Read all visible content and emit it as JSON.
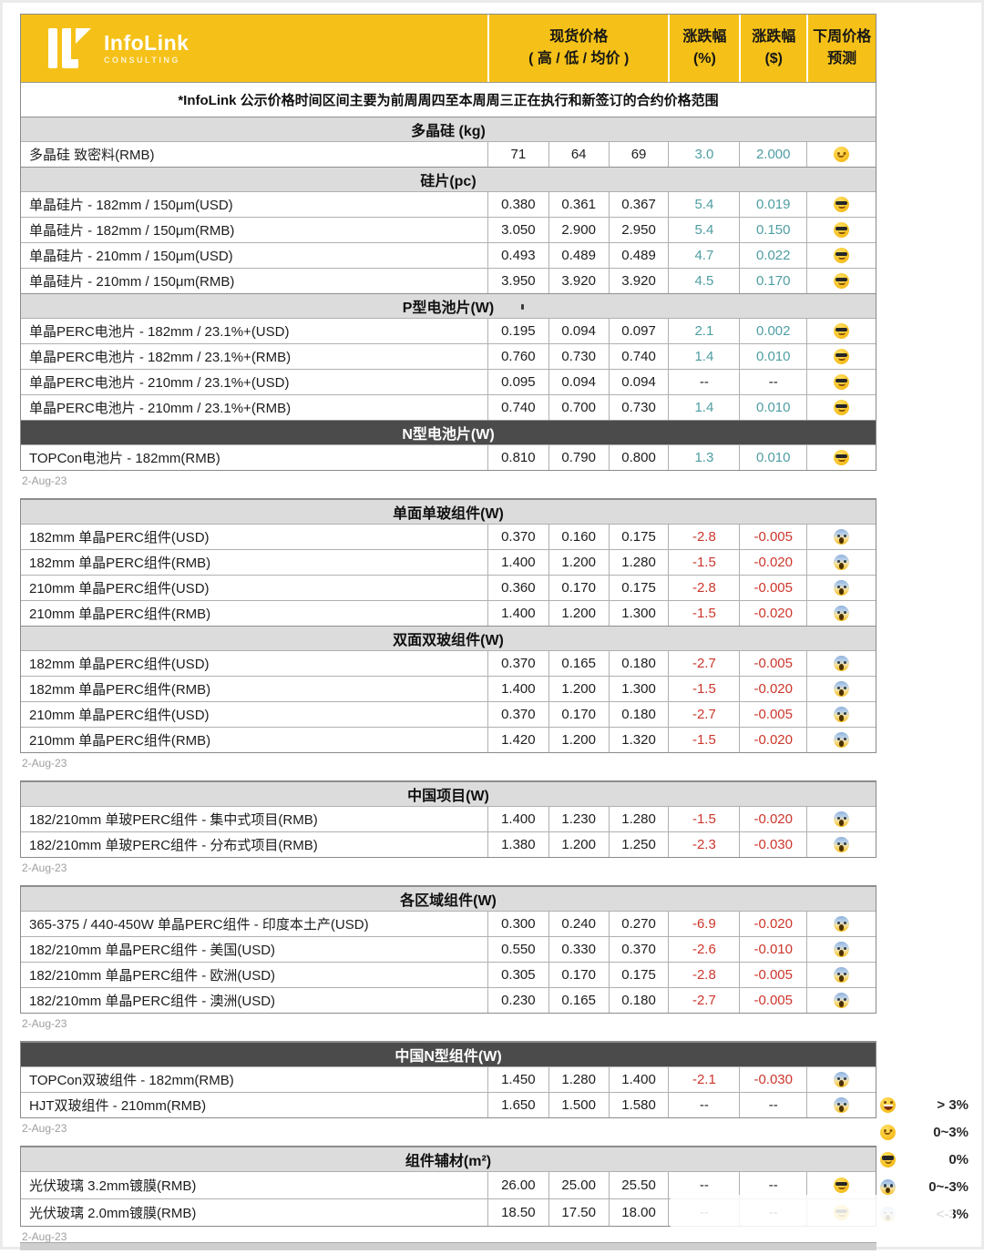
{
  "meta": {
    "date_stamp": "2-Aug-23"
  },
  "colors": {
    "accent_yellow": "#F5C118",
    "up_teal": "#4F9EA2",
    "down_red": "#CC362C",
    "dark_header_bg": "#4B4B4B",
    "section_header_bg": "#DCDCDC"
  },
  "header": {
    "brand": "InfoLink",
    "brand_sub": "CONSULTING",
    "col_spot_1": "现货价格",
    "col_spot_2": "( 高 / 低 / 均价 )",
    "col_pct_1": "涨跌幅",
    "col_pct_2": "(%)",
    "col_usd_1": "涨跌幅",
    "col_usd_2": "($)",
    "col_fc_1": "下周价格",
    "col_fc_2": "预测"
  },
  "note": "*InfoLink 公示价格时间区间主要为前周周四至本周周三正在执行和新签订的合约价格范围",
  "blocks": [
    {
      "date": "2-Aug-23",
      "sections": [
        {
          "title": "多晶硅 (kg)",
          "style": "light",
          "rows": [
            {
              "label": "多晶硅 致密料(RMB)",
              "high": "71",
              "low": "64",
              "avg": "69",
              "pct": "3.0",
              "chg": "2.000",
              "dir": "up",
              "emoji": "smile"
            }
          ]
        },
        {
          "title": "硅片(pc)",
          "style": "light",
          "rows": [
            {
              "label": "单晶硅片 - 182mm / 150μm(USD)",
              "high": "0.380",
              "low": "0.361",
              "avg": "0.367",
              "pct": "5.4",
              "chg": "0.019",
              "dir": "up",
              "emoji": "cool"
            },
            {
              "label": "单晶硅片 - 182mm / 150μm(RMB)",
              "high": "3.050",
              "low": "2.900",
              "avg": "2.950",
              "pct": "5.4",
              "chg": "0.150",
              "dir": "up",
              "emoji": "cool"
            },
            {
              "label": "单晶硅片 - 210mm / 150μm(USD)",
              "high": "0.493",
              "low": "0.489",
              "avg": "0.489",
              "pct": "4.7",
              "chg": "0.022",
              "dir": "up",
              "emoji": "cool"
            },
            {
              "label": "单晶硅片 - 210mm / 150μm(RMB)",
              "high": "3.950",
              "low": "3.920",
              "avg": "3.920",
              "pct": "4.5",
              "chg": "0.170",
              "dir": "up",
              "emoji": "cool"
            }
          ]
        },
        {
          "title": "P型电池片(W)",
          "style": "light",
          "rows": [
            {
              "label": "单晶PERC电池片 - 182mm / 23.1%+(USD)",
              "high": "0.195",
              "low": "0.094",
              "avg": "0.097",
              "pct": "2.1",
              "chg": "0.002",
              "dir": "up",
              "emoji": "cool"
            },
            {
              "label": "单晶PERC电池片 - 182mm / 23.1%+(RMB)",
              "high": "0.760",
              "low": "0.730",
              "avg": "0.740",
              "pct": "1.4",
              "chg": "0.010",
              "dir": "up",
              "emoji": "cool"
            },
            {
              "label": "单晶PERC电池片 - 210mm / 23.1%+(USD)",
              "high": "0.095",
              "low": "0.094",
              "avg": "0.094",
              "pct": "--",
              "chg": "--",
              "dir": "flat",
              "emoji": "cool"
            },
            {
              "label": "单晶PERC电池片 - 210mm / 23.1%+(RMB)",
              "high": "0.740",
              "low": "0.700",
              "avg": "0.730",
              "pct": "1.4",
              "chg": "0.010",
              "dir": "up",
              "emoji": "cool"
            }
          ]
        },
        {
          "title": "N型电池片(W)",
          "style": "dark",
          "rows": [
            {
              "label": "TOPCon电池片 - 182mm(RMB)",
              "high": "0.810",
              "low": "0.790",
              "avg": "0.800",
              "pct": "1.3",
              "chg": "0.010",
              "dir": "up",
              "emoji": "cool"
            }
          ]
        }
      ]
    },
    {
      "date": "2-Aug-23",
      "sections": [
        {
          "title": "单面单玻组件(W)",
          "style": "light",
          "rows": [
            {
              "label": "182mm 单晶PERC组件(USD)",
              "high": "0.370",
              "low": "0.160",
              "avg": "0.175",
              "pct": "-2.8",
              "chg": "-0.005",
              "dir": "down",
              "emoji": "scream"
            },
            {
              "label": "182mm 单晶PERC组件(RMB)",
              "high": "1.400",
              "low": "1.200",
              "avg": "1.280",
              "pct": "-1.5",
              "chg": "-0.020",
              "dir": "down",
              "emoji": "scream"
            },
            {
              "label": "210mm 单晶PERC组件(USD)",
              "high": "0.360",
              "low": "0.170",
              "avg": "0.175",
              "pct": "-2.8",
              "chg": "-0.005",
              "dir": "down",
              "emoji": "scream"
            },
            {
              "label": "210mm 单晶PERC组件(RMB)",
              "high": "1.400",
              "low": "1.200",
              "avg": "1.300",
              "pct": "-1.5",
              "chg": "-0.020",
              "dir": "down",
              "emoji": "scream"
            }
          ]
        },
        {
          "title": "双面双玻组件(W)",
          "style": "light",
          "rows": [
            {
              "label": "182mm 单晶PERC组件(USD)",
              "high": "0.370",
              "low": "0.165",
              "avg": "0.180",
              "pct": "-2.7",
              "chg": "-0.005",
              "dir": "down",
              "emoji": "scream"
            },
            {
              "label": "182mm 单晶PERC组件(RMB)",
              "high": "1.400",
              "low": "1.200",
              "avg": "1.300",
              "pct": "-1.5",
              "chg": "-0.020",
              "dir": "down",
              "emoji": "scream"
            },
            {
              "label": "210mm 单晶PERC组件(USD)",
              "high": "0.370",
              "low": "0.170",
              "avg": "0.180",
              "pct": "-2.7",
              "chg": "-0.005",
              "dir": "down",
              "emoji": "scream"
            },
            {
              "label": "210mm 单晶PERC组件(RMB)",
              "high": "1.420",
              "low": "1.200",
              "avg": "1.320",
              "pct": "-1.5",
              "chg": "-0.020",
              "dir": "down",
              "emoji": "scream"
            }
          ]
        }
      ]
    },
    {
      "date": "2-Aug-23",
      "sections": [
        {
          "title": "中国项目(W)",
          "style": "light",
          "rows": [
            {
              "label": "182/210mm 单玻PERC组件 - 集中式项目(RMB)",
              "high": "1.400",
              "low": "1.230",
              "avg": "1.280",
              "pct": "-1.5",
              "chg": "-0.020",
              "dir": "down",
              "emoji": "scream"
            },
            {
              "label": "182/210mm 单玻PERC组件 - 分布式项目(RMB)",
              "high": "1.380",
              "low": "1.200",
              "avg": "1.250",
              "pct": "-2.3",
              "chg": "-0.030",
              "dir": "down",
              "emoji": "scream"
            }
          ]
        }
      ]
    },
    {
      "date": "2-Aug-23",
      "sections": [
        {
          "title": "各区域组件(W)",
          "style": "light",
          "rows": [
            {
              "label": "365-375 / 440-450W 单晶PERC组件 - 印度本土产(USD)",
              "high": "0.300",
              "low": "0.240",
              "avg": "0.270",
              "pct": "-6.9",
              "chg": "-0.020",
              "dir": "down",
              "emoji": "scream"
            },
            {
              "label": "182/210mm 单晶PERC组件 - 美国(USD)",
              "high": "0.550",
              "low": "0.330",
              "avg": "0.370",
              "pct": "-2.6",
              "chg": "-0.010",
              "dir": "down",
              "emoji": "scream"
            },
            {
              "label": "182/210mm 单晶PERC组件 - 欧洲(USD)",
              "high": "0.305",
              "low": "0.170",
              "avg": "0.175",
              "pct": "-2.8",
              "chg": "-0.005",
              "dir": "down",
              "emoji": "scream"
            },
            {
              "label": "182/210mm 单晶PERC组件 - 澳洲(USD)",
              "high": "0.230",
              "low": "0.165",
              "avg": "0.180",
              "pct": "-2.7",
              "chg": "-0.005",
              "dir": "down",
              "emoji": "scream"
            }
          ]
        }
      ]
    },
    {
      "date": "2-Aug-23",
      "sections": [
        {
          "title": "中国N型组件(W)",
          "style": "dark",
          "rows": [
            {
              "label": "TOPCon双玻组件 - 182mm(RMB)",
              "high": "1.450",
              "low": "1.280",
              "avg": "1.400",
              "pct": "-2.1",
              "chg": "-0.030",
              "dir": "down",
              "emoji": "scream"
            },
            {
              "label": "HJT双玻组件 - 210mm(RMB)",
              "high": "1.650",
              "low": "1.500",
              "avg": "1.580",
              "pct": "--",
              "chg": "--",
              "dir": "flat",
              "emoji": "scream"
            }
          ]
        }
      ]
    },
    {
      "date": "2-Aug-23",
      "sections": [
        {
          "title": "组件辅材(m²)",
          "style": "light",
          "rows": [
            {
              "label": "光伏玻璃 3.2mm镀膜(RMB)",
              "high": "26.00",
              "low": "25.00",
              "avg": "25.50",
              "pct": "--",
              "chg": "--",
              "dir": "flat",
              "emoji": "cool"
            },
            {
              "label": "光伏玻璃 2.0mm镀膜(RMB)",
              "high": "18.50",
              "low": "17.50",
              "avg": "18.00",
              "pct": "--",
              "chg": "--",
              "dir": "flat",
              "emoji": "cool"
            }
          ]
        }
      ]
    }
  ],
  "legend": {
    "items": [
      {
        "emoji": "laugh",
        "label": "> 3%"
      },
      {
        "emoji": "smile",
        "label": "0~3%"
      },
      {
        "emoji": "cool",
        "label": "0%"
      },
      {
        "emoji": "scream",
        "label": "0~-3%"
      },
      {
        "emoji": "sob",
        "label": "<-3%",
        "covered": true
      }
    ]
  }
}
